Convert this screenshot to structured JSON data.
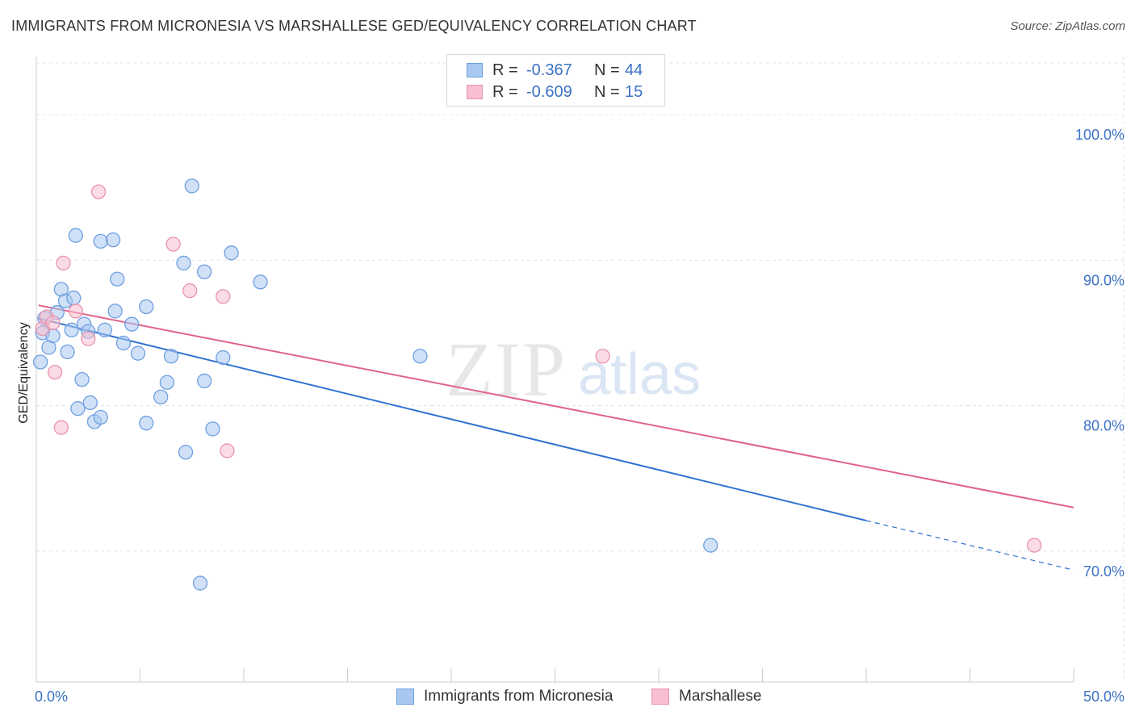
{
  "title": "IMMIGRANTS FROM MICRONESIA VS MARSHALLESE GED/EQUIVALENCY CORRELATION CHART",
  "source": "Source: ZipAtlas.com",
  "watermark": {
    "zip": "ZIP",
    "atlas": "atlas"
  },
  "legend": {
    "r_label": "R =",
    "n_label": "N =",
    "rows": [
      {
        "r": "-0.367",
        "n": "44",
        "color": "#a9c8f0",
        "edge": "#6f9fe0"
      },
      {
        "r": "-0.609",
        "n": "15",
        "color": "#f7bfcf",
        "edge": "#e893ad"
      }
    ]
  },
  "bottom_legend": [
    "Immigrants from Micronesia",
    "Marshallese"
  ],
  "chart_data": {
    "type": "scatter",
    "title": "IMMIGRANTS FROM MICRONESIA VS MARSHALLESE GED/EQUIVALENCY CORRELATION CHART",
    "xlabel": "",
    "ylabel": "GED/Equivalency",
    "xlim": [
      0,
      50
    ],
    "ylim": [
      61,
      104
    ],
    "x_tick_labels": [
      "0.0%",
      "50.0%"
    ],
    "y_ticks": [
      70,
      80,
      90,
      100
    ],
    "y_tick_labels": [
      "70.0%",
      "80.0%",
      "90.0%",
      "100.0%"
    ],
    "grid": true,
    "series": [
      {
        "name": "Immigrants from Micronesia",
        "color": "#a9c8f0",
        "edge": "#6f9fe0",
        "line_color": "#2f73d0",
        "trend": {
          "x0": 0.1,
          "y0": 86.0,
          "x1": 40.0,
          "y1": 72.1,
          "dash_to_x": 50.0,
          "dash_to_y": 68.7
        },
        "points": [
          [
            0.2,
            83.0
          ],
          [
            0.3,
            85.0
          ],
          [
            0.4,
            86.0
          ],
          [
            0.6,
            84.0
          ],
          [
            0.8,
            84.8
          ],
          [
            1.0,
            86.4
          ],
          [
            1.2,
            88.0
          ],
          [
            1.4,
            87.2
          ],
          [
            1.5,
            83.7
          ],
          [
            1.7,
            85.2
          ],
          [
            1.8,
            87.4
          ],
          [
            1.9,
            91.7
          ],
          [
            2.0,
            79.8
          ],
          [
            2.2,
            81.8
          ],
          [
            2.3,
            85.6
          ],
          [
            2.5,
            85.1
          ],
          [
            2.6,
            80.2
          ],
          [
            2.8,
            78.9
          ],
          [
            3.1,
            79.2
          ],
          [
            3.1,
            91.3
          ],
          [
            3.3,
            85.2
          ],
          [
            3.7,
            91.4
          ],
          [
            3.8,
            86.5
          ],
          [
            3.9,
            88.7
          ],
          [
            4.2,
            84.3
          ],
          [
            4.6,
            85.6
          ],
          [
            4.9,
            83.6
          ],
          [
            5.3,
            86.8
          ],
          [
            5.3,
            78.8
          ],
          [
            6.0,
            80.6
          ],
          [
            6.3,
            81.6
          ],
          [
            6.5,
            83.4
          ],
          [
            7.1,
            89.8
          ],
          [
            7.2,
            76.8
          ],
          [
            7.5,
            95.1
          ],
          [
            7.9,
            67.8
          ],
          [
            8.1,
            81.7
          ],
          [
            8.1,
            89.2
          ],
          [
            8.5,
            78.4
          ],
          [
            9.0,
            83.3
          ],
          [
            9.4,
            90.5
          ],
          [
            10.8,
            88.5
          ],
          [
            18.5,
            83.4
          ],
          [
            32.5,
            70.4
          ]
        ]
      },
      {
        "name": "Marshallese",
        "color": "#f7bfcf",
        "edge": "#e893ad",
        "line_color": "#e0628d",
        "trend": {
          "x0": 0.1,
          "y0": 86.9,
          "x1": 50.0,
          "y1": 73.0
        },
        "points": [
          [
            0.3,
            85.3
          ],
          [
            0.5,
            86.1
          ],
          [
            0.8,
            85.7
          ],
          [
            0.9,
            82.3
          ],
          [
            1.2,
            78.5
          ],
          [
            1.3,
            89.8
          ],
          [
            1.9,
            86.5
          ],
          [
            2.5,
            84.6
          ],
          [
            3.0,
            94.7
          ],
          [
            6.6,
            91.1
          ],
          [
            7.4,
            87.9
          ],
          [
            9.0,
            87.5
          ],
          [
            9.2,
            76.9
          ],
          [
            27.3,
            83.4
          ],
          [
            48.1,
            70.4
          ]
        ]
      }
    ]
  }
}
